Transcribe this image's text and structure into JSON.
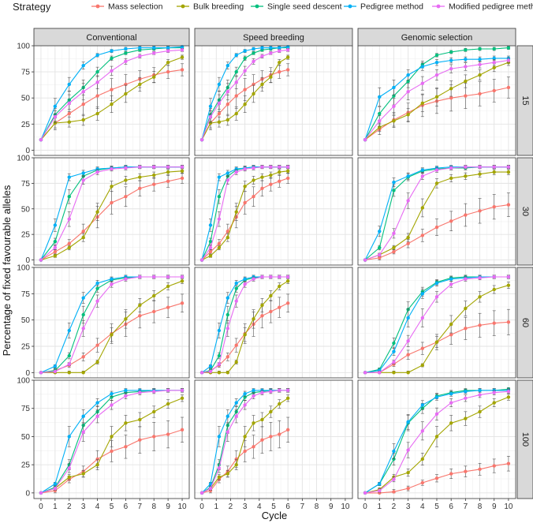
{
  "chart_data": {
    "type": "line",
    "ylabel": "Percentage of fixed favourable alleles",
    "xlabel": "Cycle",
    "legend_title": "Strategy",
    "legend_position": "top",
    "x": [
      0,
      1,
      2,
      3,
      4,
      5,
      6,
      7,
      8,
      9,
      10
    ],
    "xticks": [
      "0",
      "1",
      "2",
      "3",
      "4",
      "5",
      "6",
      "7",
      "8",
      "9",
      "10"
    ],
    "yticks": [
      "0",
      "25",
      "50",
      "75",
      "100"
    ],
    "ylim": [
      0,
      100
    ],
    "columns": [
      "Conventional",
      "Speed breeding",
      "Genomic selection"
    ],
    "rows": [
      "15",
      "30",
      "60",
      "100"
    ],
    "speed_breeding_x": [
      0,
      0.6,
      1.2,
      1.8,
      2.4,
      3,
      3.6,
      4.2,
      4.8,
      5.4,
      6
    ],
    "series": [
      {
        "name": "Mass selection",
        "color": "#F8766D"
      },
      {
        "name": "Bulk breeding",
        "color": "#A3A500"
      },
      {
        "name": "Single seed descent",
        "color": "#00BF7D"
      },
      {
        "name": "Pedigree method",
        "color": "#00B0F6"
      },
      {
        "name": "Modified pedigree method",
        "color": "#E76BF3"
      }
    ],
    "panels": {
      "Conventional": {
        "15": [
          [
            10,
            26,
            35,
            44,
            52,
            58,
            63,
            68,
            72,
            75,
            77
          ],
          [
            10,
            26,
            27,
            29,
            35,
            44,
            54,
            63,
            70,
            84,
            89
          ],
          [
            10,
            34,
            48,
            60,
            75,
            88,
            93,
            96,
            97,
            98,
            98
          ],
          [
            10,
            42,
            63,
            81,
            91,
            95,
            97,
            98,
            98,
            98,
            99
          ],
          [
            10,
            32,
            45,
            56,
            65,
            76,
            85,
            90,
            93,
            95,
            96
          ]
        ],
        "30": [
          [
            0,
            8,
            16,
            28,
            42,
            56,
            62,
            70,
            74,
            77,
            80
          ],
          [
            0,
            4,
            12,
            22,
            47,
            72,
            78,
            81,
            83,
            86,
            87
          ],
          [
            0,
            18,
            62,
            82,
            88,
            90,
            91,
            91,
            91,
            91,
            91
          ],
          [
            0,
            34,
            81,
            85,
            89,
            90,
            91,
            91,
            91,
            91,
            91
          ],
          [
            0,
            12,
            40,
            78,
            86,
            89,
            90,
            91,
            91,
            91,
            91
          ]
        ],
        "60": [
          [
            0,
            2,
            7,
            15,
            26,
            37,
            46,
            54,
            58,
            62,
            66
          ],
          [
            0,
            0,
            0,
            0,
            10,
            36,
            51,
            64,
            73,
            82,
            87
          ],
          [
            0,
            2,
            16,
            55,
            80,
            88,
            90,
            91,
            91,
            91,
            91
          ],
          [
            0,
            6,
            40,
            71,
            85,
            89,
            91,
            91,
            91,
            91,
            91
          ],
          [
            0,
            1,
            8,
            42,
            68,
            84,
            89,
            91,
            91,
            91,
            91
          ]
        ],
        "100": [
          [
            0,
            2,
            12,
            19,
            30,
            37,
            41,
            47,
            50,
            52,
            56
          ],
          [
            0,
            4,
            14,
            17,
            25,
            50,
            62,
            65,
            72,
            79,
            84
          ],
          [
            0,
            5,
            25,
            60,
            72,
            85,
            89,
            90,
            91,
            91,
            91
          ],
          [
            0,
            8,
            50,
            68,
            80,
            88,
            91,
            91,
            91,
            91,
            91
          ],
          [
            0,
            4,
            22,
            54,
            68,
            78,
            86,
            89,
            90,
            91,
            91
          ]
        ]
      },
      "Speed breeding": {
        "15": [
          [
            10,
            26,
            35,
            44,
            52,
            58,
            63,
            68,
            72,
            75,
            77
          ],
          [
            10,
            26,
            27,
            29,
            35,
            44,
            54,
            63,
            70,
            84,
            89
          ],
          [
            10,
            34,
            48,
            60,
            75,
            88,
            93,
            96,
            97,
            98,
            98
          ],
          [
            10,
            42,
            63,
            81,
            91,
            95,
            97,
            98,
            98,
            98,
            99
          ],
          [
            10,
            32,
            45,
            56,
            65,
            76,
            85,
            90,
            93,
            95,
            96
          ]
        ],
        "30": [
          [
            0,
            8,
            16,
            28,
            42,
            56,
            62,
            70,
            74,
            77,
            80
          ],
          [
            0,
            4,
            12,
            22,
            47,
            72,
            78,
            81,
            83,
            86,
            87
          ],
          [
            0,
            18,
            62,
            82,
            88,
            90,
            91,
            91,
            91,
            91,
            91
          ],
          [
            0,
            34,
            81,
            85,
            89,
            90,
            91,
            91,
            91,
            91,
            91
          ],
          [
            0,
            12,
            40,
            78,
            86,
            89,
            90,
            91,
            91,
            91,
            91
          ]
        ],
        "60": [
          [
            0,
            2,
            7,
            15,
            26,
            37,
            46,
            54,
            58,
            62,
            66
          ],
          [
            0,
            0,
            0,
            0,
            10,
            36,
            51,
            64,
            73,
            82,
            87
          ],
          [
            0,
            2,
            16,
            55,
            80,
            88,
            90,
            91,
            91,
            91,
            91
          ],
          [
            0,
            6,
            40,
            71,
            85,
            89,
            91,
            91,
            91,
            91,
            91
          ],
          [
            0,
            1,
            8,
            42,
            68,
            84,
            89,
            91,
            91,
            91,
            91
          ]
        ],
        "100": [
          [
            0,
            2,
            12,
            19,
            30,
            37,
            41,
            47,
            50,
            52,
            56
          ],
          [
            0,
            4,
            14,
            17,
            25,
            50,
            62,
            65,
            72,
            79,
            84
          ],
          [
            0,
            5,
            25,
            60,
            72,
            85,
            89,
            90,
            91,
            91,
            91
          ],
          [
            0,
            8,
            50,
            68,
            80,
            88,
            91,
            91,
            91,
            91,
            91
          ],
          [
            0,
            4,
            22,
            54,
            68,
            78,
            86,
            89,
            90,
            91,
            91
          ]
        ]
      },
      "Genomic selection": {
        "15": [
          [
            10,
            20,
            29,
            36,
            43,
            47,
            50,
            52,
            54,
            57,
            60
          ],
          [
            10,
            22,
            28,
            34,
            45,
            51,
            59,
            66,
            72,
            79,
            84
          ],
          [
            10,
            35,
            52,
            66,
            82,
            91,
            94,
            96,
            97,
            97,
            98
          ],
          [
            10,
            51,
            60,
            72,
            80,
            84,
            86,
            87,
            87,
            88,
            88
          ],
          [
            10,
            28,
            42,
            56,
            64,
            72,
            78,
            80,
            82,
            84,
            86
          ]
        ],
        "30": [
          [
            0,
            2,
            8,
            16,
            24,
            32,
            38,
            44,
            48,
            52,
            54
          ],
          [
            0,
            5,
            12,
            22,
            51,
            75,
            80,
            82,
            84,
            86,
            86
          ],
          [
            0,
            12,
            68,
            81,
            87,
            89,
            90,
            90,
            91,
            91,
            91
          ],
          [
            0,
            28,
            76,
            82,
            88,
            90,
            91,
            91,
            91,
            91,
            91
          ],
          [
            0,
            5,
            26,
            58,
            82,
            88,
            90,
            91,
            91,
            91,
            91
          ]
        ],
        "60": [
          [
            0,
            0,
            8,
            17,
            23,
            29,
            36,
            42,
            45,
            47,
            48
          ],
          [
            0,
            0,
            0,
            0,
            7,
            29,
            46,
            61,
            72,
            79,
            83
          ],
          [
            0,
            3,
            28,
            60,
            77,
            86,
            90,
            91,
            91,
            91,
            91
          ],
          [
            0,
            2,
            20,
            52,
            75,
            85,
            89,
            90,
            91,
            91,
            91
          ],
          [
            0,
            0,
            10,
            30,
            52,
            72,
            84,
            89,
            90,
            91,
            91
          ]
        ],
        "100": [
          [
            0,
            0,
            1,
            4,
            9,
            13,
            17,
            19,
            21,
            24,
            26
          ],
          [
            0,
            3,
            14,
            18,
            30,
            50,
            62,
            66,
            72,
            80,
            85
          ],
          [
            0,
            8,
            30,
            62,
            75,
            86,
            89,
            91,
            91,
            91,
            92
          ],
          [
            0,
            8,
            37,
            63,
            78,
            85,
            88,
            90,
            91,
            91,
            91
          ],
          [
            0,
            2,
            12,
            38,
            55,
            70,
            80,
            84,
            87,
            89,
            90
          ]
        ]
      }
    }
  }
}
